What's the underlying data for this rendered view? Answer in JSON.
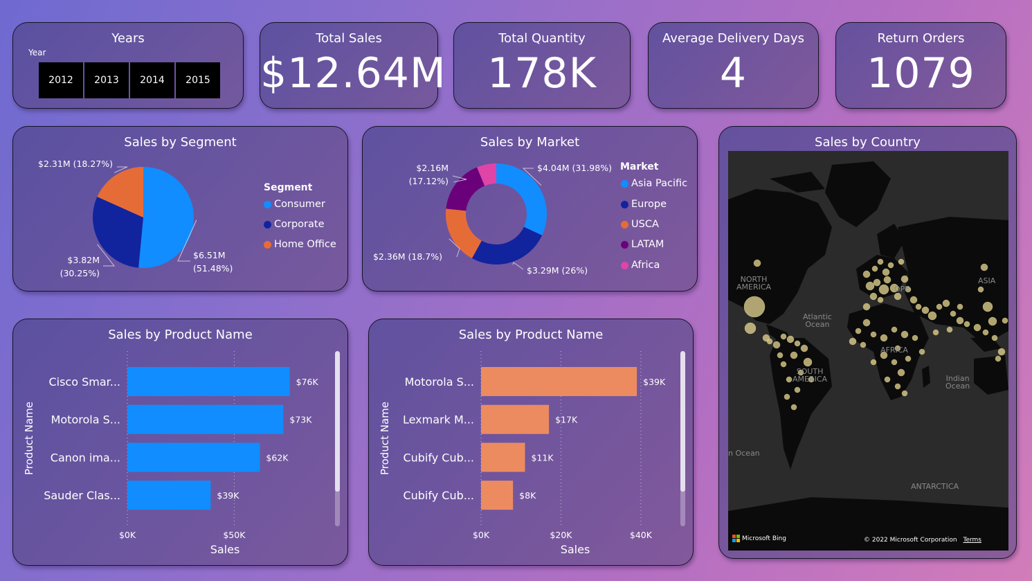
{
  "years": {
    "title": "Years",
    "label": "Year",
    "options": [
      "2012",
      "2013",
      "2014",
      "2015"
    ]
  },
  "kpis": [
    {
      "title": "Total Sales",
      "value": "$12.64M"
    },
    {
      "title": "Total Quantity",
      "value": "178K"
    },
    {
      "title": "Average Delivery Days",
      "value": "4"
    },
    {
      "title": "Return Orders",
      "value": "1079"
    }
  ],
  "segment_chart": {
    "title": "Sales by Segment",
    "legend_title": "Segment",
    "chart_data": {
      "type": "pie",
      "slices": [
        {
          "name": "Consumer",
          "value": 6.51,
          "percent": 51.48,
          "color": "#118DFF",
          "label": [
            "$6.51M",
            "(51.48%)"
          ]
        },
        {
          "name": "Corporate",
          "value": 3.82,
          "percent": 30.25,
          "color": "#12239E",
          "label": [
            "$3.82M",
            "(30.25%)"
          ]
        },
        {
          "name": "Home Office",
          "value": 2.31,
          "percent": 18.27,
          "color": "#E66C37",
          "label": [
            "$2.31M (18.27%)"
          ]
        }
      ]
    }
  },
  "market_chart": {
    "title": "Sales by Market",
    "legend_title": "Market",
    "chart_data": {
      "type": "pie",
      "donut": true,
      "slices": [
        {
          "name": "Asia Pacific",
          "value": 4.04,
          "percent": 31.98,
          "color": "#118DFF",
          "label": [
            "$4.04M (31.98%)"
          ]
        },
        {
          "name": "Europe",
          "value": 3.29,
          "percent": 26,
          "color": "#12239E",
          "label": [
            "$3.29M (26%)"
          ]
        },
        {
          "name": "USCA",
          "value": 2.36,
          "percent": 18.7,
          "color": "#E66C37",
          "label": [
            "$2.36M (18.7%)"
          ]
        },
        {
          "name": "LATAM",
          "value": 2.16,
          "percent": 17.12,
          "color": "#6B007B",
          "label": [
            "$2.16M",
            "(17.12%)"
          ]
        },
        {
          "name": "Africa",
          "value": 0.79,
          "percent": 6.2,
          "color": "#E044A7",
          "label": []
        }
      ]
    }
  },
  "product_chart_1": {
    "title": "Sales by Product Name",
    "chart_data": {
      "type": "bar",
      "orientation": "horizontal",
      "categories": [
        "Cisco Smar...",
        "Motorola S...",
        "Canon ima...",
        "Sauder Clas..."
      ],
      "values": [
        76,
        73,
        62,
        39
      ],
      "data_labels": [
        "$76K",
        "$73K",
        "$62K",
        "$39K"
      ],
      "xlabel": "Sales",
      "ylabel": "Product Name",
      "xlim": [
        0,
        80
      ],
      "xticks": [
        0,
        50
      ],
      "xtick_labels": [
        "$0K",
        "$50K"
      ],
      "color": "#118DFF"
    }
  },
  "product_chart_2": {
    "title": "Sales by Product Name",
    "chart_data": {
      "type": "bar",
      "orientation": "horizontal",
      "categories": [
        "Motorola S...",
        "Lexmark M...",
        "Cubify Cub...",
        "Cubify Cub..."
      ],
      "values": [
        39,
        17,
        11,
        8
      ],
      "data_labels": [
        "$39K",
        "$17K",
        "$11K",
        "$8K"
      ],
      "xlabel": "Sales",
      "ylabel": "Product Name",
      "xlim": [
        0,
        44
      ],
      "xticks": [
        0,
        20,
        40
      ],
      "xtick_labels": [
        "$0K",
        "$20K",
        "$40K"
      ],
      "color": "#EC8B60"
    }
  },
  "map_chart": {
    "title": "Sales by Country",
    "labels": {
      "north_america": [
        "NORTH",
        "AMERICA"
      ],
      "atlantic": [
        "Atlantic",
        "Ocean"
      ],
      "south_america": [
        "SOUTH",
        "AMERICA"
      ],
      "indian": [
        "Indian",
        "Ocean"
      ],
      "asia": [
        "ASIA"
      ],
      "europe": [
        "OPE"
      ],
      "africa": [
        "AFRICA"
      ],
      "ocean_left": [
        "n Ocean"
      ],
      "antarctica": [
        "ANTARCTICA"
      ]
    },
    "attribution": "Microsoft Bing",
    "copyright": "© 2022 Microsoft Corporation",
    "terms": "Terms",
    "bubble_color": "#E8DA96"
  }
}
